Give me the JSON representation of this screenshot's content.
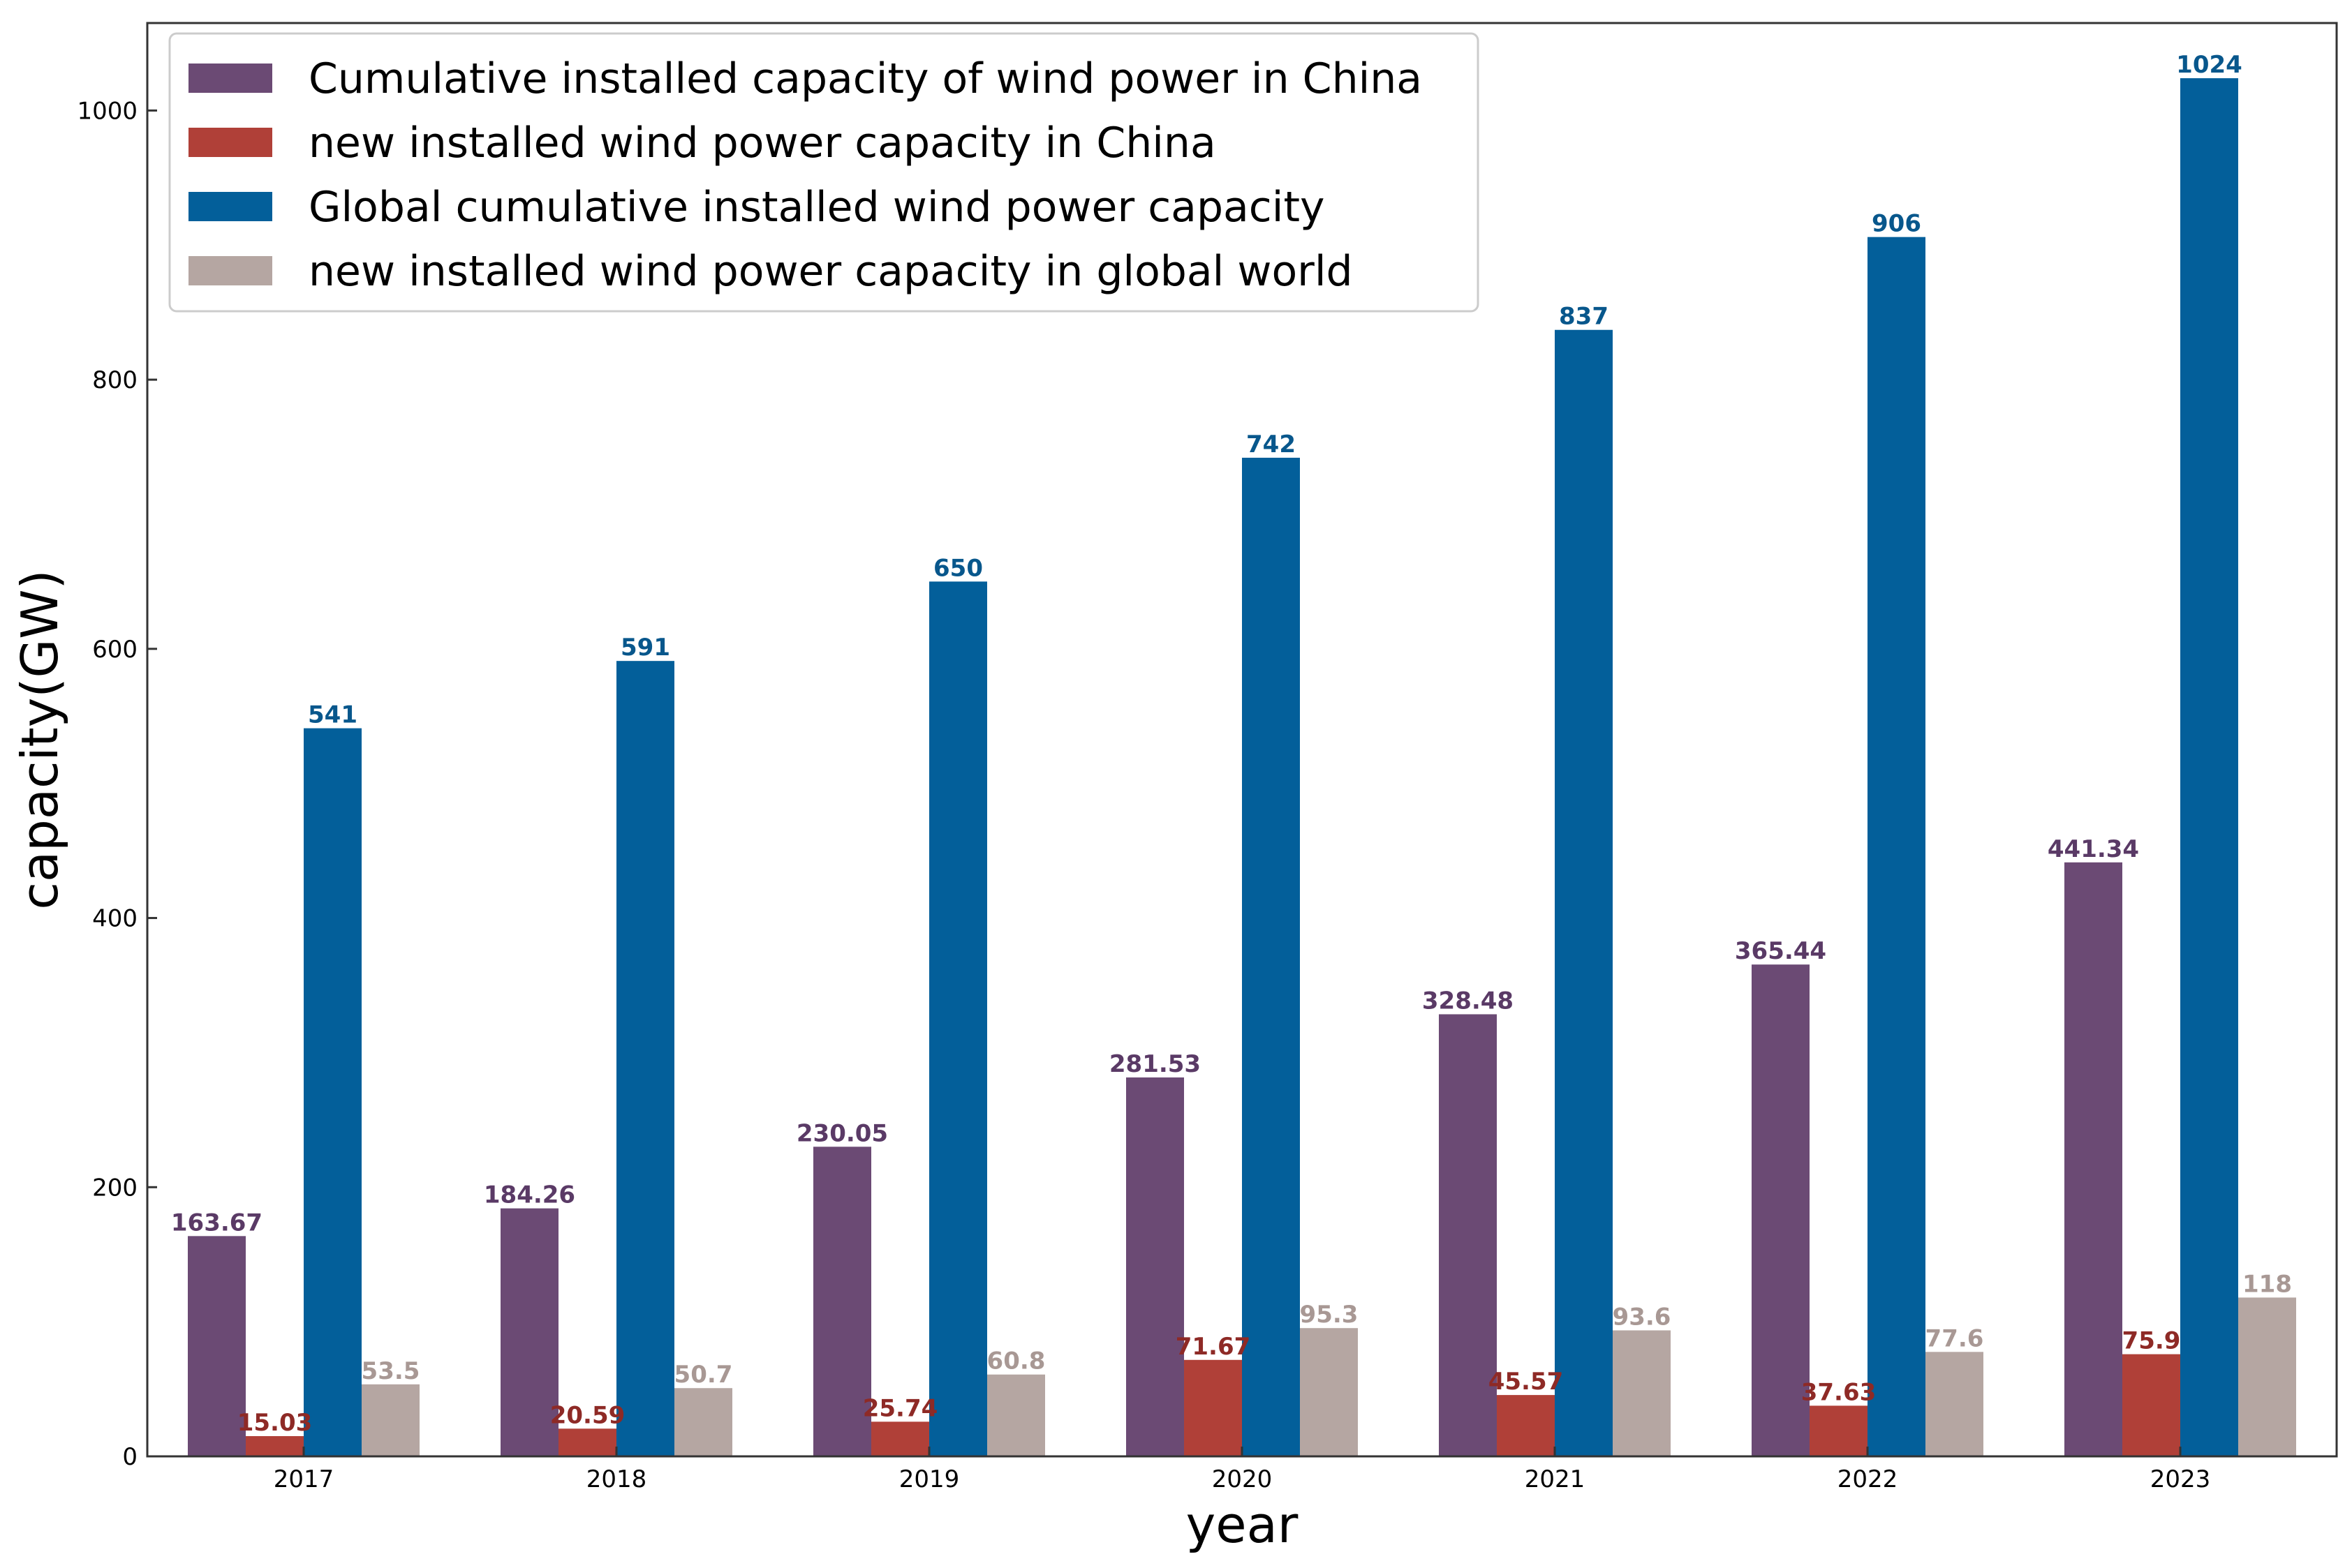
{
  "chart_data": {
    "type": "bar",
    "title": "",
    "xlabel": "year",
    "ylabel": "capacity(GW)",
    "ylim": [
      0,
      1065
    ],
    "yticks": [
      0,
      200,
      400,
      600,
      800,
      1000
    ],
    "categories": [
      "2017",
      "2018",
      "2019",
      "2020",
      "2021",
      "2022",
      "2023"
    ],
    "legend_position": "top-left",
    "grid": false,
    "series": [
      {
        "name": "Cumulative installed capacity of wind power in China",
        "color": "#6b4a74",
        "label_color": "#5a3a66",
        "values": [
          163.67,
          184.26,
          230.05,
          281.53,
          328.48,
          365.44,
          441.34
        ],
        "labels": [
          "163.67",
          "184.26",
          "230.05",
          "281.53",
          "328.48",
          "365.44",
          "441.34"
        ]
      },
      {
        "name": "new installed wind power capacity in China",
        "color": "#b04038",
        "label_color": "#8e2a26",
        "values": [
          15.03,
          20.59,
          25.74,
          71.67,
          45.57,
          37.63,
          75.9
        ],
        "labels": [
          "15.03",
          "20.59",
          "25.74",
          "71.67",
          "45.57",
          "37.63",
          "75.9"
        ]
      },
      {
        "name": "Global cumulative installed wind power capacity",
        "color": "#035f9a",
        "label_color": "#08578c",
        "values": [
          541,
          591,
          650,
          742,
          837,
          906,
          1024
        ],
        "labels": [
          "541",
          "591",
          "650",
          "742",
          "837",
          "906",
          "1024"
        ]
      },
      {
        "name": "new installed wind power capacity in global world",
        "color": "#b5a6a2",
        "label_color": "#a89894",
        "values": [
          53.5,
          50.7,
          60.8,
          95.3,
          93.6,
          77.6,
          118
        ],
        "labels": [
          "53.5",
          "50.7",
          "60.8",
          "95.3",
          "93.6",
          "77.6",
          "118"
        ]
      }
    ]
  }
}
